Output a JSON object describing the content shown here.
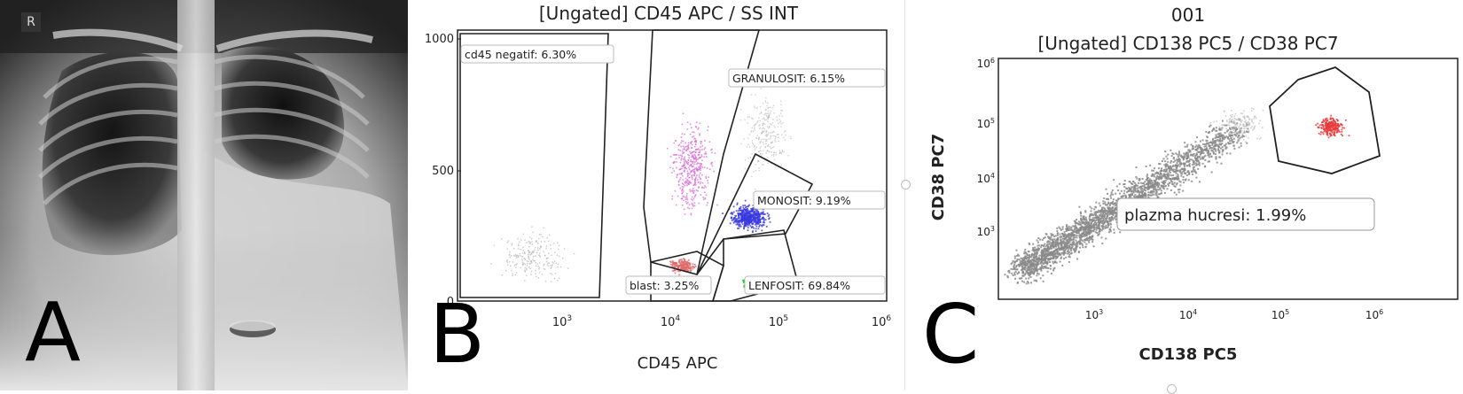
{
  "panel_a": {
    "letter": "A",
    "marker": "R"
  },
  "panel_b": {
    "letter": "B",
    "title": "[Ungated] CD45 APC / SS INT",
    "xlabel": "CD45 APC",
    "y_ticks": [
      "1000",
      "500",
      "0"
    ],
    "x_ticks": [
      "10",
      "10",
      "10",
      "10"
    ],
    "x_exps": [
      "3",
      "4",
      "5",
      "6"
    ],
    "gates": {
      "cd45neg": "cd45 negatif: 6.30%",
      "granulosit": "GRANULOSIT: 6.15%",
      "monosit": "MONOSIT: 9.19%",
      "blast": "blast: 3.25%",
      "lenfosit": "LENFOSIT: 69.84%"
    },
    "colors": {
      "granulosit": "#d86ad8",
      "monosit": "#3a3ae0",
      "blast": "#e06a6a",
      "lenfosit": "#22cc22",
      "other": "#b0b0b0"
    }
  },
  "panel_c": {
    "letter": "C",
    "title1": "001",
    "title2": "[Ungated] CD138 PC5 / CD38 PC7",
    "xlabel": "CD138 PC5",
    "ylabel": "CD38 PC7",
    "y_ticks": [
      "10",
      "10",
      "10",
      "10"
    ],
    "y_exps": [
      "6",
      "5",
      "4",
      "3"
    ],
    "x_ticks": [
      "10",
      "10",
      "10",
      "10"
    ],
    "x_exps": [
      "3",
      "4",
      "5",
      "6"
    ],
    "gate_label": "plazma hucresi: 1.99%",
    "colors": {
      "main": "#8a8a8a",
      "plasma": "#e83a3a"
    }
  }
}
